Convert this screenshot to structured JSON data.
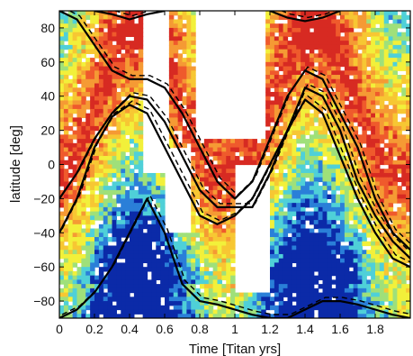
{
  "chart_data": {
    "type": "heatmap",
    "title": "",
    "xlabel": "Time [Titan yrs]",
    "ylabel": "latitude [deg]",
    "xlim": [
      0,
      2.0
    ],
    "ylim": [
      -90,
      90
    ],
    "x_ticks": [
      0,
      0.2,
      0.4,
      0.6,
      0.8,
      1,
      1.2,
      1.4,
      1.6,
      1.8
    ],
    "x_tick_labels": [
      "0",
      "0.2",
      "0.4",
      "0.6",
      "0.8",
      "1",
      "1.2",
      "1.4",
      "1.6",
      "1.8"
    ],
    "y_ticks": [
      80,
      60,
      40,
      20,
      0,
      -20,
      -40,
      -60,
      -80
    ],
    "y_tick_labels": [
      "80",
      "60",
      "40",
      "20",
      "0",
      "−20",
      "−40",
      "−60",
      "−80"
    ],
    "grid": false,
    "colormap": [
      "#0b2aa8",
      "#2a7fd8",
      "#4fd0d8",
      "#9fe07a",
      "#f2f03a",
      "#f7c733",
      "#f59a34",
      "#ef5a2c",
      "#d72a22"
    ],
    "curves": [
      {
        "name": "",
        "x": [
          0,
          0.1,
          0.2,
          0.3,
          0.4,
          0.5,
          0.6,
          0.7,
          0.8,
          0.9,
          1.0,
          1.1,
          1.2,
          1.3,
          1.4,
          1.5,
          1.6,
          1.7,
          1.8,
          1.9,
          2.0
        ],
        "y": [
          -20,
          -5,
          15,
          30,
          40,
          38,
          25,
          5,
          -15,
          -25,
          -25,
          -25,
          -5,
          20,
          45,
          40,
          20,
          -10,
          -30,
          -45,
          -55
        ]
      },
      {
        "name": "",
        "x": [
          0,
          0.1,
          0.2,
          0.3,
          0.4,
          0.5,
          0.6,
          0.7,
          0.8,
          0.9,
          1.0,
          1.1,
          1.2,
          1.3,
          1.4,
          1.5,
          1.6,
          1.7,
          1.8,
          1.9,
          2.0
        ],
        "y": [
          -40,
          -20,
          10,
          28,
          35,
          30,
          10,
          -10,
          -30,
          -35,
          -30,
          -20,
          0,
          20,
          38,
          30,
          5,
          -20,
          -40,
          -55,
          -60
        ]
      },
      {
        "name": "",
        "x": [
          0,
          0.1,
          0.2,
          0.3,
          0.4,
          0.5,
          0.6,
          0.7,
          0.8,
          0.9,
          1.0,
          1.1,
          1.2,
          1.3,
          1.4,
          1.5,
          1.6,
          1.7,
          1.8,
          1.9,
          2.0
        ],
        "y": [
          90,
          85,
          70,
          55,
          50,
          50,
          45,
          30,
          10,
          -10,
          -20,
          -10,
          15,
          40,
          55,
          50,
          30,
          10,
          -20,
          -40,
          -50
        ]
      },
      {
        "name": "",
        "x": [
          0,
          0.1,
          0.2,
          0.3,
          0.4,
          0.5,
          0.6,
          0.7,
          0.8,
          0.9,
          1.0,
          1.1,
          1.2,
          1.3,
          1.4,
          1.5,
          1.6,
          1.7,
          1.8,
          1.9,
          2.0
        ],
        "y": [
          -90,
          -85,
          -75,
          -60,
          -40,
          -20,
          -40,
          -70,
          -80,
          -82,
          -85,
          -88,
          -90,
          -90,
          -85,
          -80,
          -80,
          -82,
          -85,
          -88,
          -90
        ]
      },
      {
        "name": "",
        "x": [
          0.2,
          0.3,
          0.4,
          0.5,
          0.6
        ],
        "y": [
          90,
          88,
          85,
          88,
          90
        ]
      },
      {
        "name": "",
        "x": [
          1.2,
          1.3,
          1.4,
          1.5,
          1.6
        ],
        "y": [
          90,
          86,
          84,
          86,
          90
        ]
      }
    ]
  }
}
